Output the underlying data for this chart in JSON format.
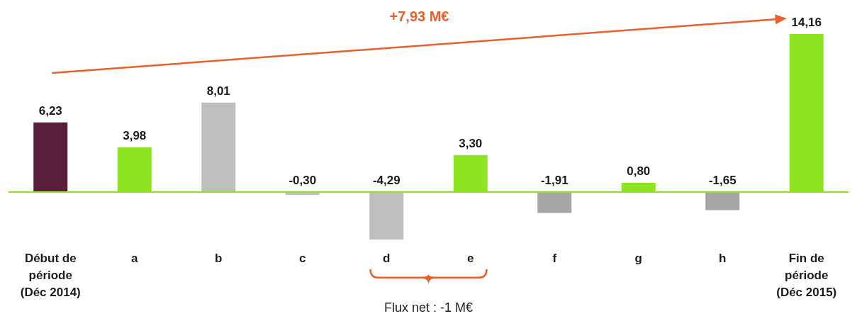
{
  "chart_data": {
    "type": "bar",
    "categories": [
      "Début de\npériode\n(Déc 2014)",
      "a",
      "b",
      "c",
      "d",
      "e",
      "f",
      "g",
      "h",
      "Fin de\npériode\n(Déc 2015)"
    ],
    "values": [
      6.23,
      3.98,
      8.01,
      -0.3,
      -4.29,
      3.3,
      -1.91,
      0.8,
      -1.65,
      14.16
    ],
    "colors": [
      "#5a1e3c",
      "#8ee421",
      "#bfbfbf",
      "#bfbfbf",
      "#bfbfbf",
      "#8ee421",
      "#a6a6a6",
      "#8ee421",
      "#a6a6a6",
      "#8ee421"
    ],
    "value_labels": [
      "6,23",
      "3,98",
      "8,01",
      "-0,30",
      "-4,29",
      "3,30",
      "-1,91",
      "0,80",
      "-1,65",
      "14,16"
    ],
    "annotations": [
      "+7,93 M€",
      "Flux net : -1 M€"
    ],
    "ref_lines": [
      {
        "axis": "y",
        "value": 0,
        "color": "#8ee421"
      }
    ],
    "grid": false
  }
}
